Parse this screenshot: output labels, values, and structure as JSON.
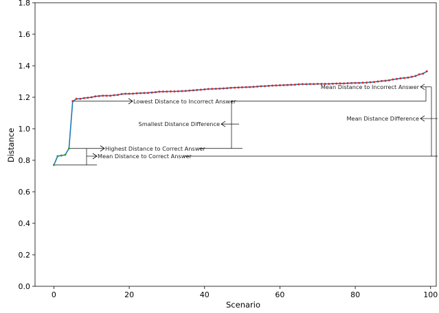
{
  "chart_data": {
    "type": "line",
    "xlabel": "Scenario",
    "ylabel": "Distance",
    "xlim": [
      -5,
      101.5
    ],
    "ylim": [
      0.0,
      1.8
    ],
    "xticks": [
      0,
      20,
      40,
      60,
      80,
      100
    ],
    "yticks": [
      0.0,
      0.2,
      0.4,
      0.6,
      0.8,
      1.0,
      1.2,
      1.4,
      1.6,
      1.8
    ],
    "xtick_labels": [
      "0",
      "20",
      "40",
      "60",
      "80",
      "100"
    ],
    "ytick_labels": [
      "0.0",
      "0.2",
      "0.4",
      "0.6",
      "0.8",
      "1.0",
      "1.2",
      "1.4",
      "1.6",
      "1.8"
    ],
    "grid": false,
    "colors": {
      "line": "#1f77b4",
      "correct_marker": "#2ca02c",
      "incorrect_marker": "#d62728",
      "annotation": "#000000"
    },
    "series": [
      {
        "x": [
          0,
          1,
          2,
          3,
          4,
          5,
          6,
          7,
          8,
          9,
          10,
          11,
          12,
          13,
          14,
          15,
          16,
          17,
          18,
          19,
          20,
          21,
          22,
          23,
          24,
          25,
          26,
          27,
          28,
          29,
          30,
          31,
          32,
          33,
          34,
          35,
          36,
          37,
          38,
          39,
          40,
          41,
          42,
          43,
          44,
          45,
          46,
          47,
          48,
          49,
          50,
          51,
          52,
          53,
          54,
          55,
          56,
          57,
          58,
          59,
          60,
          61,
          62,
          63,
          64,
          65,
          66,
          67,
          68,
          69,
          70,
          71,
          72,
          73,
          74,
          75,
          76,
          77,
          78,
          79,
          80,
          81,
          82,
          83,
          84,
          85,
          86,
          87,
          88,
          89,
          90,
          91,
          92,
          93,
          94,
          95,
          96,
          97,
          98,
          99
        ],
        "y": [
          0.77,
          0.826,
          0.83,
          0.835,
          0.875,
          1.175,
          1.19,
          1.19,
          1.195,
          1.197,
          1.2,
          1.205,
          1.208,
          1.21,
          1.21,
          1.21,
          1.213,
          1.215,
          1.22,
          1.222,
          1.222,
          1.223,
          1.225,
          1.226,
          1.227,
          1.228,
          1.23,
          1.232,
          1.235,
          1.236,
          1.236,
          1.237,
          1.237,
          1.238,
          1.239,
          1.24,
          1.242,
          1.244,
          1.246,
          1.248,
          1.25,
          1.252,
          1.253,
          1.254,
          1.255,
          1.256,
          1.258,
          1.26,
          1.261,
          1.262,
          1.263,
          1.264,
          1.265,
          1.266,
          1.268,
          1.27,
          1.271,
          1.272,
          1.274,
          1.275,
          1.276,
          1.277,
          1.278,
          1.279,
          1.28,
          1.282,
          1.283,
          1.283,
          1.284,
          1.284,
          1.285,
          1.285,
          1.285,
          1.285,
          1.286,
          1.287,
          1.288,
          1.288,
          1.289,
          1.29,
          1.291,
          1.291,
          1.292,
          1.293,
          1.295,
          1.297,
          1.3,
          1.303,
          1.305,
          1.308,
          1.313,
          1.316,
          1.32,
          1.322,
          1.325,
          1.33,
          1.335,
          1.345,
          1.35,
          1.365
        ],
        "marker_colors": "first 5 points green (correct), remaining red (incorrect)"
      }
    ],
    "annotations": [
      {
        "text": "Lowest Distance to Incorrect Answer",
        "value_y": 1.175
      },
      {
        "text": "Smallest Distance Difference",
        "value_y": 1.03
      },
      {
        "text": "Highest Distance to Correct Answer",
        "value_y": 0.875
      },
      {
        "text": "Mean Distance to Correct Answer",
        "value_y": 0.826
      },
      {
        "text": "Mean Distance to Incorrect Answer",
        "value_y": 1.266
      },
      {
        "text": "Mean Distance Difference",
        "value_y": 1.065
      }
    ]
  }
}
